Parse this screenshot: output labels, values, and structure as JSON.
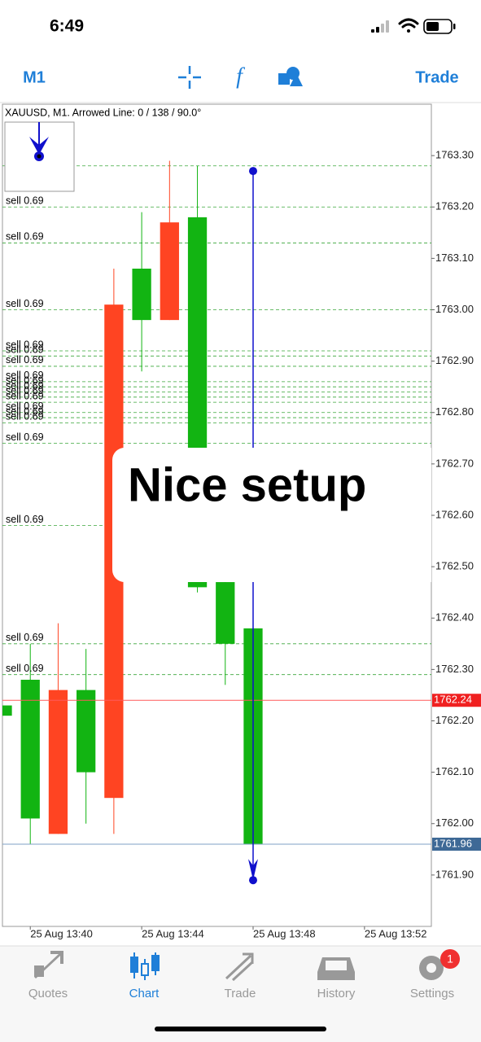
{
  "status_bar": {
    "time": "6:49"
  },
  "toolbar": {
    "timeframe": "M1",
    "trade": "Trade"
  },
  "chart_data": {
    "type": "candlestick",
    "title": "XAUUSD, M1. Arrowed Line: 0 / 138 / 90.0°",
    "open": [
      1762.21,
      1762.01,
      1762.26,
      1762.1,
      1763.01,
      1762.98,
      1763.17,
      1762.46,
      1762.35,
      1761.96
    ],
    "high": [
      1762.23,
      1762.35,
      1762.39,
      1762.34,
      1763.08,
      1763.19,
      1763.29,
      1763.28,
      1762.47,
      1762.38
    ],
    "low": [
      1762.21,
      1761.96,
      1761.98,
      1762.0,
      1761.98,
      1762.88,
      1762.98,
      1762.45,
      1762.27,
      1761.96
    ],
    "close": [
      1762.23,
      1762.28,
      1761.98,
      1762.26,
      1762.05,
      1763.08,
      1762.98,
      1763.18,
      1762.47,
      1762.38
    ],
    "up_color": "#12b412",
    "down_color": "#ff4422",
    "xlim": [
      0,
      15.4
    ],
    "xticks": [
      {
        "value": 1,
        "label": "25 Aug 13:40"
      },
      {
        "value": 5,
        "label": "25 Aug 13:44"
      },
      {
        "value": 9,
        "label": "25 Aug 13:48"
      },
      {
        "value": 13,
        "label": "25 Aug 13:52"
      }
    ],
    "ylim": [
      1761.8,
      1763.4
    ],
    "yticks": [
      {
        "value": 1763.3,
        "label": "1763.30"
      },
      {
        "value": 1763.2,
        "label": "1763.20"
      },
      {
        "value": 1763.1,
        "label": "1763.10"
      },
      {
        "value": 1763.0,
        "label": "1763.00"
      },
      {
        "value": 1762.9,
        "label": "1762.90"
      },
      {
        "value": 1762.8,
        "label": "1762.80"
      },
      {
        "value": 1762.7,
        "label": "1762.70"
      },
      {
        "value": 1762.6,
        "label": "1762.60"
      },
      {
        "value": 1762.5,
        "label": "1762.50"
      },
      {
        "value": 1762.4,
        "label": "1762.40"
      },
      {
        "value": 1762.3,
        "label": "1762.30"
      },
      {
        "value": 1762.2,
        "label": "1762.20"
      },
      {
        "value": 1762.1,
        "label": "1762.10"
      },
      {
        "value": 1762.0,
        "label": "1762.00"
      },
      {
        "value": 1761.9,
        "label": "1761.90"
      }
    ],
    "orders": [
      {
        "label": "sell 0.69",
        "price": 1763.2
      },
      {
        "label": "sell 0.69",
        "price": 1763.13
      },
      {
        "label": "sell 0.69",
        "price": 1763.0
      },
      {
        "label": "sell 0.69",
        "price": 1762.92
      },
      {
        "label": "sell 0.69",
        "price": 1762.91
      },
      {
        "label": "sell 0.69",
        "price": 1762.89
      },
      {
        "label": "sell 0.69",
        "price": 1762.86
      },
      {
        "label": "sell 0.69",
        "price": 1762.85
      },
      {
        "label": "sell 0.69",
        "price": 1762.84
      },
      {
        "label": "sell 0.69",
        "price": 1762.83
      },
      {
        "label": "sell 0.69",
        "price": 1762.82
      },
      {
        "label": "sell 0.69",
        "price": 1762.8
      },
      {
        "label": "sell 0.69",
        "price": 1762.79
      },
      {
        "label": "sell 0.69",
        "price": 1762.78
      },
      {
        "label": "sell 0.69",
        "price": 1762.74
      },
      {
        "label": "sell 0.69",
        "price": 1762.58
      },
      {
        "label": "sell 0.69",
        "price": 1762.35
      },
      {
        "label": "sell 0.69",
        "price": 1762.29
      }
    ],
    "level_lines": [
      1763.28
    ],
    "bid": 1762.24,
    "ask": 1761.96,
    "arrow_line": {
      "x": 9,
      "start": 1763.27,
      "end": 1761.89
    },
    "annotation": "Nice setup"
  },
  "tab_bar": {
    "tabs": [
      {
        "label": "Quotes"
      },
      {
        "label": "Chart",
        "active": true
      },
      {
        "label": "Trade"
      },
      {
        "label": "History"
      },
      {
        "label": "Settings",
        "badge": 1
      }
    ]
  }
}
